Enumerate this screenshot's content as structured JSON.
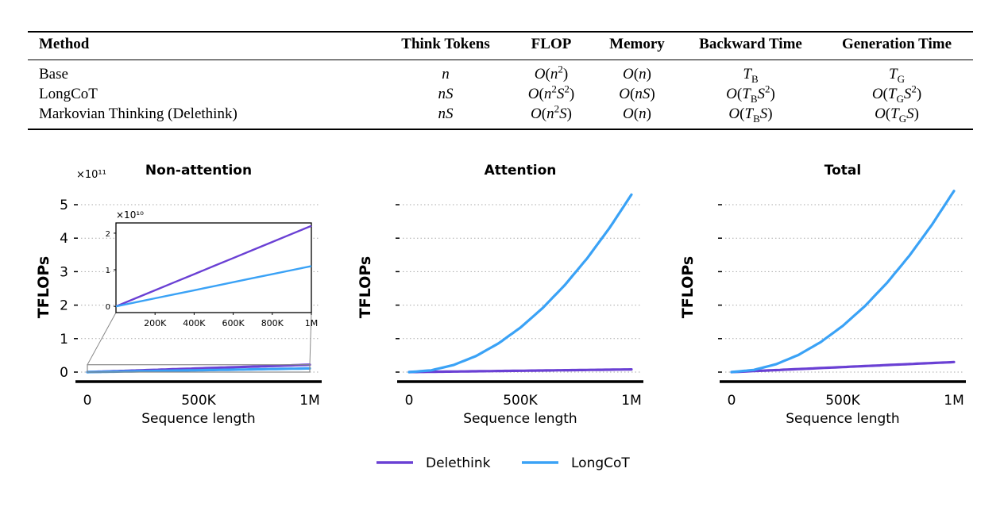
{
  "table": {
    "headers": [
      "Method",
      "Think Tokens",
      "FLOP",
      "Memory",
      "Backward Time",
      "Generation Time"
    ],
    "rows": [
      [
        "Base",
        "n",
        "O(n^2)",
        "O(n)",
        "T_B",
        "T_G"
      ],
      [
        "LongCoT",
        "nS",
        "O(n^2S^2)",
        "O(nS)",
        "O(T_BS^2)",
        "O(T_GS^2)"
      ],
      [
        "Markovian Thinking (Delethink)",
        "nS",
        "O(n^2S)",
        "O(n)",
        "O(T_BS)",
        "O(T_GS)"
      ]
    ]
  },
  "colors": {
    "Delethink": "#6a40d4",
    "LongCoT": "#3aa2f6"
  },
  "legend": [
    {
      "name": "Delethink",
      "color": "#6a40d4"
    },
    {
      "name": "LongCoT",
      "color": "#3aa2f6"
    }
  ],
  "chart_data": [
    {
      "type": "line",
      "title": "Non-attention",
      "xlabel": "Sequence length",
      "ylabel": "TFLOPs",
      "y_multiplier": "×10¹¹",
      "xlim": [
        0,
        1000000
      ],
      "ylim": [
        0,
        5
      ],
      "grid": "horizontal dotted",
      "xticks": [
        "0",
        "500K",
        "1M"
      ],
      "xtick_values": [
        0,
        500000,
        1000000
      ],
      "yticks": [
        "0",
        "1",
        "2",
        "3",
        "4",
        "5"
      ],
      "ytick_values": [
        0,
        1,
        2,
        3,
        4,
        5
      ],
      "x": [
        0,
        100000,
        200000,
        300000,
        400000,
        500000,
        600000,
        700000,
        800000,
        900000,
        1000000
      ],
      "series": [
        {
          "name": "Delethink",
          "values": [
            0,
            0.022,
            0.044,
            0.066,
            0.088,
            0.11,
            0.132,
            0.154,
            0.176,
            0.198,
            0.22
          ]
        },
        {
          "name": "LongCoT",
          "values": [
            0,
            0.011,
            0.022,
            0.033,
            0.044,
            0.055,
            0.066,
            0.077,
            0.088,
            0.099,
            0.11
          ]
        }
      ],
      "inset": {
        "y_multiplier": "×10¹⁰",
        "xlim": [
          0,
          1000000
        ],
        "ylim": [
          -0.17,
          2.28
        ],
        "xticks": [
          "200K",
          "400K",
          "600K",
          "800K",
          "1M"
        ],
        "xtick_values": [
          200000,
          400000,
          600000,
          800000,
          1000000
        ],
        "yticks": [
          "0",
          "1",
          "2"
        ],
        "ytick_values": [
          0,
          1,
          2
        ],
        "series": [
          {
            "name": "Delethink",
            "values": [
              0,
              0.22,
              0.44,
              0.66,
              0.88,
              1.1,
              1.32,
              1.54,
              1.76,
              1.98,
              2.2
            ]
          },
          {
            "name": "LongCoT",
            "values": [
              0,
              0.11,
              0.22,
              0.33,
              0.44,
              0.55,
              0.66,
              0.77,
              0.88,
              0.99,
              1.1
            ]
          }
        ]
      }
    },
    {
      "type": "line",
      "title": "Attention",
      "xlabel": "Sequence length",
      "ylabel": "TFLOPs",
      "xlim": [
        0,
        1000000
      ],
      "ylim": [
        0,
        5
      ],
      "grid": "horizontal dotted",
      "xticks": [
        "0",
        "500K",
        "1M"
      ],
      "xtick_values": [
        0,
        500000,
        1000000
      ],
      "yticks": [
        "",
        "",
        "",
        "",
        "",
        ""
      ],
      "ytick_values": [
        0,
        1,
        2,
        3,
        4,
        5
      ],
      "x": [
        0,
        100000,
        200000,
        300000,
        400000,
        500000,
        600000,
        700000,
        800000,
        900000,
        1000000
      ],
      "series": [
        {
          "name": "Delethink",
          "values": [
            0,
            0.008,
            0.016,
            0.024,
            0.032,
            0.04,
            0.048,
            0.056,
            0.064,
            0.072,
            0.08
          ]
        },
        {
          "name": "LongCoT",
          "values": [
            0,
            0.053,
            0.212,
            0.477,
            0.848,
            1.325,
            1.908,
            2.597,
            3.392,
            4.293,
            5.3
          ]
        }
      ]
    },
    {
      "type": "line",
      "title": "Total",
      "xlabel": "Sequence length",
      "ylabel": "TFLOPs",
      "xlim": [
        0,
        1000000
      ],
      "ylim": [
        0,
        5
      ],
      "grid": "horizontal dotted",
      "xticks": [
        "0",
        "500K",
        "1M"
      ],
      "xtick_values": [
        0,
        500000,
        1000000
      ],
      "yticks": [
        "",
        "",
        "",
        "",
        "",
        ""
      ],
      "ytick_values": [
        0,
        1,
        2,
        3,
        4,
        5
      ],
      "x": [
        0,
        100000,
        200000,
        300000,
        400000,
        500000,
        600000,
        700000,
        800000,
        900000,
        1000000
      ],
      "series": [
        {
          "name": "Delethink",
          "values": [
            0,
            0.03,
            0.06,
            0.09,
            0.12,
            0.15,
            0.18,
            0.21,
            0.24,
            0.27,
            0.3
          ]
        },
        {
          "name": "LongCoT",
          "values": [
            0,
            0.064,
            0.234,
            0.51,
            0.892,
            1.38,
            1.974,
            2.674,
            3.48,
            4.392,
            5.41
          ]
        }
      ]
    }
  ]
}
